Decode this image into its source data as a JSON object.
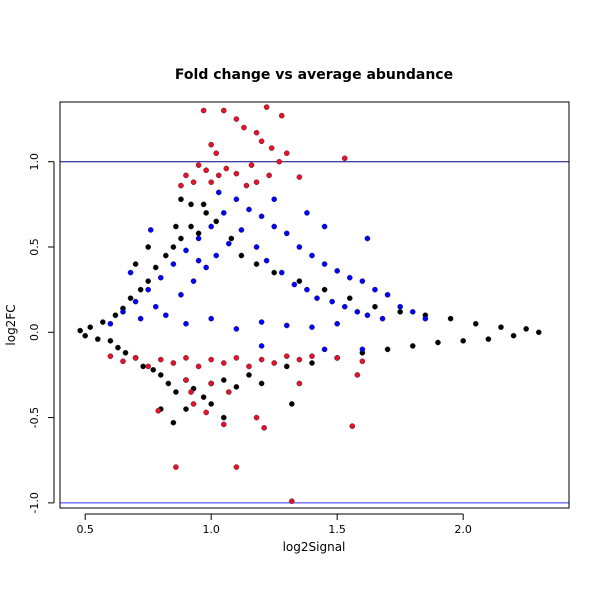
{
  "chart_data": {
    "type": "scatter",
    "title": "Fold change vs average abundance",
    "xlabel": "log2Signal",
    "ylabel": "log2FC",
    "xlim": [
      0.4,
      2.42
    ],
    "ylim": [
      -1.03,
      1.35
    ],
    "x_ticks": [
      0.5,
      1.0,
      1.5,
      2.0
    ],
    "x_tick_labels": [
      "0.5",
      "1.0",
      "1.5",
      "2.0"
    ],
    "y_ticks": [
      -1.0,
      -0.5,
      0.0,
      0.5,
      1.0
    ],
    "y_tick_labels": [
      "-1.0",
      "-0.5",
      "0.0",
      "0.5",
      "1.0"
    ],
    "grid": false,
    "reference_lines": [
      {
        "axis": "y",
        "value": 1.0,
        "color": "#000080"
      },
      {
        "axis": "y",
        "value": -1.0,
        "color": "#3333ff"
      }
    ],
    "series": [
      {
        "color": "#000000",
        "points": [
          [
            0.48,
            0.01
          ],
          [
            0.5,
            -0.02
          ],
          [
            0.52,
            0.03
          ],
          [
            0.55,
            -0.04
          ],
          [
            0.57,
            0.06
          ],
          [
            0.6,
            -0.05
          ],
          [
            0.62,
            0.1
          ],
          [
            0.63,
            -0.09
          ],
          [
            0.65,
            0.14
          ],
          [
            0.66,
            -0.12
          ],
          [
            0.68,
            0.2
          ],
          [
            0.7,
            -0.15
          ],
          [
            0.72,
            0.25
          ],
          [
            0.73,
            -0.2
          ],
          [
            0.75,
            0.3
          ],
          [
            0.77,
            -0.22
          ],
          [
            0.78,
            0.38
          ],
          [
            0.8,
            -0.25
          ],
          [
            0.82,
            0.45
          ],
          [
            0.83,
            -0.3
          ],
          [
            0.85,
            0.5
          ],
          [
            0.86,
            -0.35
          ],
          [
            0.88,
            0.55
          ],
          [
            0.9,
            -0.28
          ],
          [
            0.92,
            0.62
          ],
          [
            0.93,
            -0.33
          ],
          [
            0.95,
            0.58
          ],
          [
            0.97,
            -0.38
          ],
          [
            0.98,
            0.7
          ],
          [
            1.0,
            -0.3
          ],
          [
            1.02,
            0.65
          ],
          [
            1.05,
            -0.28
          ],
          [
            1.08,
            0.55
          ],
          [
            1.1,
            -0.32
          ],
          [
            1.12,
            0.45
          ],
          [
            1.15,
            -0.25
          ],
          [
            1.18,
            0.4
          ],
          [
            1.2,
            -0.3
          ],
          [
            1.25,
            0.35
          ],
          [
            1.3,
            -0.2
          ],
          [
            1.35,
            0.3
          ],
          [
            1.4,
            -0.18
          ],
          [
            1.45,
            0.25
          ],
          [
            1.5,
            -0.15
          ],
          [
            1.55,
            0.2
          ],
          [
            1.6,
            -0.12
          ],
          [
            1.65,
            0.15
          ],
          [
            1.7,
            -0.1
          ],
          [
            1.75,
            0.12
          ],
          [
            1.8,
            -0.08
          ],
          [
            1.85,
            0.1
          ],
          [
            1.9,
            -0.06
          ],
          [
            1.95,
            0.08
          ],
          [
            2.0,
            -0.05
          ],
          [
            2.05,
            0.05
          ],
          [
            2.1,
            -0.04
          ],
          [
            2.15,
            0.03
          ],
          [
            2.2,
            -0.02
          ],
          [
            2.25,
            0.02
          ],
          [
            2.3,
            0.0
          ],
          [
            0.7,
            0.4
          ],
          [
            0.75,
            0.5
          ],
          [
            0.86,
            0.62
          ],
          [
            0.97,
            0.75
          ],
          [
            0.8,
            -0.45
          ],
          [
            0.85,
            -0.53
          ],
          [
            0.9,
            -0.45
          ],
          [
            1.0,
            -0.42
          ],
          [
            1.05,
            -0.5
          ],
          [
            1.32,
            -0.42
          ],
          [
            0.92,
            0.75
          ],
          [
            0.88,
            0.78
          ]
        ]
      },
      {
        "color": "#0000ff",
        "points": [
          [
            0.6,
            0.05
          ],
          [
            0.65,
            0.12
          ],
          [
            0.7,
            0.18
          ],
          [
            0.72,
            0.08
          ],
          [
            0.75,
            0.25
          ],
          [
            0.78,
            0.15
          ],
          [
            0.8,
            0.32
          ],
          [
            0.82,
            0.1
          ],
          [
            0.85,
            0.4
          ],
          [
            0.88,
            0.22
          ],
          [
            0.9,
            0.48
          ],
          [
            0.93,
            0.3
          ],
          [
            0.95,
            0.55
          ],
          [
            0.98,
            0.38
          ],
          [
            1.0,
            0.62
          ],
          [
            1.02,
            0.45
          ],
          [
            1.05,
            0.7
          ],
          [
            1.07,
            0.52
          ],
          [
            1.1,
            0.78
          ],
          [
            1.12,
            0.6
          ],
          [
            1.15,
            0.72
          ],
          [
            1.18,
            0.5
          ],
          [
            1.2,
            0.68
          ],
          [
            1.22,
            0.42
          ],
          [
            1.25,
            0.62
          ],
          [
            1.28,
            0.35
          ],
          [
            1.3,
            0.58
          ],
          [
            1.33,
            0.28
          ],
          [
            1.35,
            0.5
          ],
          [
            1.38,
            0.25
          ],
          [
            1.4,
            0.45
          ],
          [
            1.42,
            0.2
          ],
          [
            1.45,
            0.4
          ],
          [
            1.48,
            0.18
          ],
          [
            1.5,
            0.36
          ],
          [
            1.53,
            0.15
          ],
          [
            1.55,
            0.32
          ],
          [
            1.58,
            0.12
          ],
          [
            1.6,
            0.3
          ],
          [
            1.62,
            0.1
          ],
          [
            1.65,
            0.25
          ],
          [
            1.68,
            0.08
          ],
          [
            1.7,
            0.22
          ],
          [
            1.75,
            0.15
          ],
          [
            1.8,
            0.12
          ],
          [
            1.85,
            0.08
          ],
          [
            0.9,
            0.05
          ],
          [
            1.0,
            0.08
          ],
          [
            1.1,
            0.02
          ],
          [
            1.2,
            0.06
          ],
          [
            1.3,
            0.04
          ],
          [
            1.4,
            0.03
          ],
          [
            1.5,
            0.05
          ],
          [
            1.2,
            -0.08
          ],
          [
            1.45,
            -0.1
          ],
          [
            1.6,
            -0.1
          ],
          [
            1.03,
            0.82
          ],
          [
            1.25,
            0.78
          ],
          [
            1.38,
            0.7
          ],
          [
            1.45,
            0.62
          ],
          [
            1.62,
            0.55
          ],
          [
            0.76,
            0.6
          ],
          [
            0.68,
            0.35
          ],
          [
            0.95,
            0.42
          ]
        ]
      },
      {
        "color": "#e8102a",
        "points": [
          [
            0.97,
            1.3
          ],
          [
            1.05,
            1.3
          ],
          [
            1.1,
            1.25
          ],
          [
            1.13,
            1.2
          ],
          [
            1.22,
            1.32
          ],
          [
            1.28,
            1.27
          ],
          [
            1.18,
            1.17
          ],
          [
            1.2,
            1.12
          ],
          [
            1.24,
            1.08
          ],
          [
            1.3,
            1.05
          ],
          [
            1.0,
            1.1
          ],
          [
            1.02,
            1.05
          ],
          [
            0.95,
            0.98
          ],
          [
            0.98,
            0.95
          ],
          [
            1.06,
            0.96
          ],
          [
            1.1,
            0.93
          ],
          [
            0.9,
            0.92
          ],
          [
            0.93,
            0.88
          ],
          [
            0.88,
            0.86
          ],
          [
            1.0,
            0.88
          ],
          [
            1.03,
            0.92
          ],
          [
            1.14,
            0.86
          ],
          [
            1.18,
            0.88
          ],
          [
            1.23,
            0.92
          ],
          [
            1.16,
            0.98
          ],
          [
            1.27,
            1.0
          ],
          [
            1.53,
            1.02
          ],
          [
            1.35,
            0.91
          ],
          [
            0.6,
            -0.14
          ],
          [
            0.65,
            -0.17
          ],
          [
            0.7,
            -0.15
          ],
          [
            0.75,
            -0.2
          ],
          [
            0.8,
            -0.16
          ],
          [
            0.85,
            -0.18
          ],
          [
            0.9,
            -0.15
          ],
          [
            0.95,
            -0.2
          ],
          [
            1.0,
            -0.16
          ],
          [
            1.05,
            -0.18
          ],
          [
            1.1,
            -0.15
          ],
          [
            1.15,
            -0.2
          ],
          [
            1.2,
            -0.16
          ],
          [
            1.25,
            -0.18
          ],
          [
            1.3,
            -0.14
          ],
          [
            1.35,
            -0.16
          ],
          [
            1.4,
            -0.14
          ],
          [
            1.5,
            -0.15
          ],
          [
            1.6,
            -0.17
          ],
          [
            0.9,
            -0.28
          ],
          [
            1.0,
            -0.3
          ],
          [
            1.07,
            -0.35
          ],
          [
            0.93,
            -0.42
          ],
          [
            0.98,
            -0.47
          ],
          [
            1.05,
            -0.54
          ],
          [
            1.18,
            -0.5
          ],
          [
            1.21,
            -0.56
          ],
          [
            1.56,
            -0.55
          ],
          [
            0.86,
            -0.79
          ],
          [
            1.1,
            -0.79
          ],
          [
            1.32,
            -0.99
          ],
          [
            0.79,
            -0.46
          ],
          [
            0.92,
            -0.35
          ],
          [
            1.35,
            -0.3
          ],
          [
            1.58,
            -0.25
          ]
        ]
      }
    ]
  }
}
